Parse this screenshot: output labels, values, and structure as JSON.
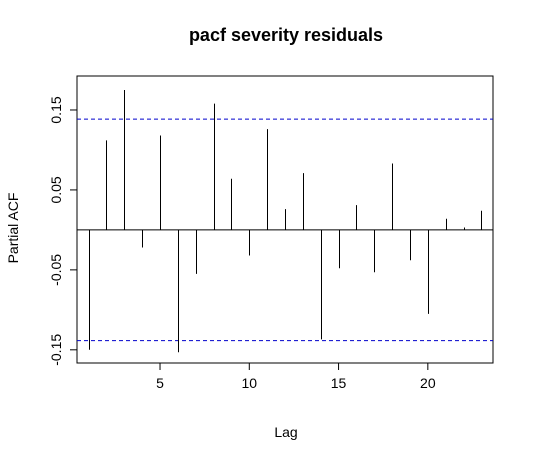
{
  "chart_data": {
    "type": "bar",
    "title": "pacf severity residuals",
    "xlabel": "Lag",
    "ylabel": "Partial ACF",
    "x": [
      1,
      2,
      3,
      4,
      5,
      6,
      7,
      8,
      9,
      10,
      11,
      12,
      13,
      14,
      15,
      16,
      17,
      18,
      19,
      20,
      21,
      22,
      23
    ],
    "values": [
      -0.15,
      0.112,
      0.175,
      -0.022,
      0.118,
      -0.153,
      -0.055,
      0.158,
      0.064,
      -0.032,
      0.126,
      0.026,
      0.071,
      -0.137,
      -0.048,
      0.031,
      -0.053,
      0.083,
      -0.038,
      -0.105,
      0.014,
      0.003,
      0.024
    ],
    "confidence_bound": 0.1385,
    "xlim": [
      0.35,
      23.65
    ],
    "ylim": [
      -0.1665,
      0.1925
    ],
    "x_ticks": [
      5,
      10,
      15,
      20
    ],
    "x_tick_labels": [
      "5",
      "10",
      "15",
      "20"
    ],
    "y_ticks": [
      -0.15,
      -0.05,
      0.05,
      0.15
    ],
    "y_tick_labels": [
      "-0.15",
      "-0.05",
      "0.05",
      "0.15"
    ],
    "grid": false,
    "colors": {
      "bars": "#000000",
      "confidence": "#0000cc",
      "axis": "#000000"
    }
  }
}
